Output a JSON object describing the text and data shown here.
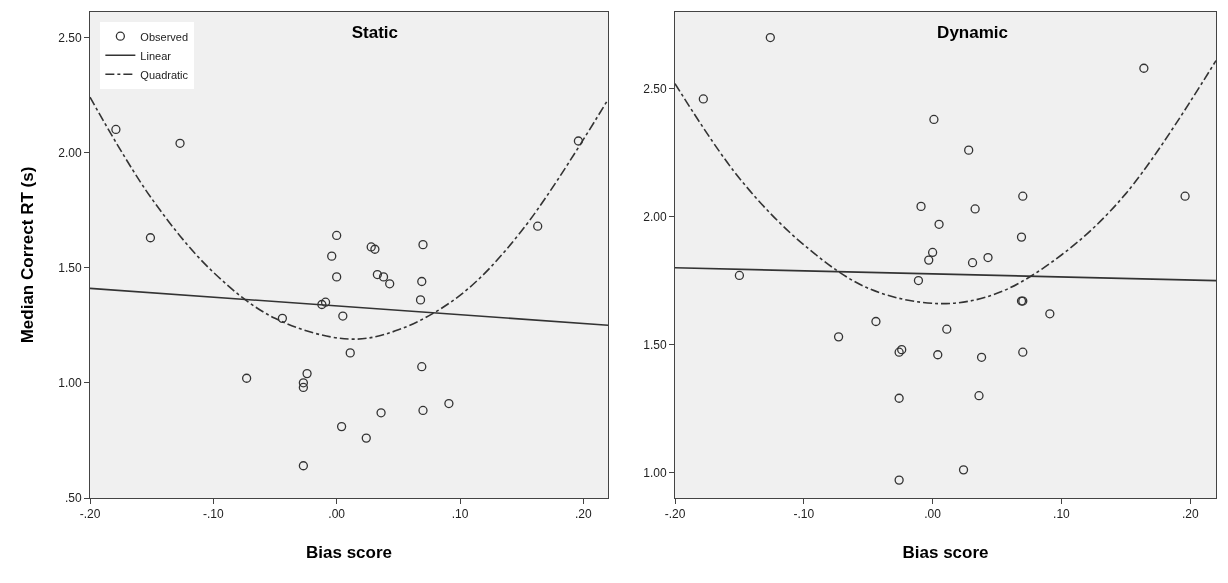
{
  "chart_data": [
    {
      "type": "scatter",
      "title": "Static",
      "xlabel": "Bias score",
      "ylabel": "Median Correct RT (s)",
      "legend": "top left",
      "grid": false,
      "xlim": [
        -0.2,
        0.22
      ],
      "xticks": [
        {
          "value": -0.2,
          "label": "-.20"
        },
        {
          "value": -0.1,
          "label": "-.10"
        },
        {
          "value": 0,
          "label": ".00"
        },
        {
          "value": 0.1,
          "label": ".10"
        },
        {
          "value": 0.2,
          "label": ".20"
        }
      ],
      "ylim": [
        0.5,
        2.61
      ],
      "yticks": [
        {
          "value": 0.5,
          "label": ".50"
        },
        {
          "value": 1,
          "label": "1.00"
        },
        {
          "value": 1.5,
          "label": "1.50"
        },
        {
          "value": 2,
          "label": "2.00"
        },
        {
          "value": 2.5,
          "label": "2.50"
        }
      ],
      "series": [
        {
          "name": "Observed",
          "type": "scatter",
          "marker": "circle",
          "color": "#333333",
          "x": [
            -0.179,
            -0.127,
            -0.151,
            0.0,
            -0.004,
            0.028,
            0.031,
            0.07,
            0.0,
            0.033,
            0.038,
            0.043,
            0.069,
            0.163,
            0.196,
            0.068,
            -0.012,
            -0.009,
            -0.044,
            0.005,
            0.011,
            -0.073,
            -0.024,
            -0.027,
            -0.027,
            0.069,
            0.07,
            0.091,
            0.036,
            0.004,
            0.024,
            -0.027
          ],
          "values": [
            2.1,
            2.04,
            1.63,
            1.64,
            1.55,
            1.59,
            1.58,
            1.6,
            1.46,
            1.47,
            1.46,
            1.43,
            1.44,
            1.68,
            2.05,
            1.36,
            1.34,
            1.35,
            1.28,
            1.29,
            1.13,
            1.02,
            1.04,
            1.0,
            0.98,
            1.07,
            0.88,
            0.91,
            0.87,
            0.81,
            0.76,
            0.64
          ]
        },
        {
          "name": "Linear",
          "type": "line",
          "line_style": "solid",
          "color": "#333333",
          "x": [
            -0.2,
            0.22
          ],
          "values": [
            1.41,
            1.25
          ]
        },
        {
          "name": "Quadratic",
          "type": "line",
          "line_style": "dashdot",
          "color": "#333333",
          "x": [
            -0.2,
            -0.15,
            -0.1,
            -0.05,
            0.01,
            0.05,
            0.1,
            0.15,
            0.22
          ],
          "values": [
            2.24,
            1.8,
            1.48,
            1.28,
            1.19,
            1.23,
            1.38,
            1.66,
            2.23
          ]
        }
      ]
    },
    {
      "type": "scatter",
      "title": "Dynamic",
      "xlabel": "Bias score",
      "grid": false,
      "xlim": [
        -0.2,
        0.22
      ],
      "xticks": [
        {
          "value": -0.2,
          "label": "-.20"
        },
        {
          "value": -0.1,
          "label": "-.10"
        },
        {
          "value": 0,
          "label": ".00"
        },
        {
          "value": 0.1,
          "label": ".10"
        },
        {
          "value": 0.2,
          "label": ".20"
        }
      ],
      "ylim": [
        0.9,
        2.8
      ],
      "yticks": [
        {
          "value": 1,
          "label": "1.00"
        },
        {
          "value": 1.5,
          "label": "1.50"
        },
        {
          "value": 2,
          "label": "2.00"
        },
        {
          "value": 2.5,
          "label": "2.50"
        }
      ],
      "series": [
        {
          "type": "scatter",
          "marker": "circle",
          "color": "#333333",
          "x": [
            -0.126,
            -0.178,
            0.001,
            0.028,
            0.164,
            0.196,
            0.07,
            -0.009,
            0.033,
            0.005,
            0.069,
            0.0,
            -0.003,
            0.031,
            0.043,
            -0.15,
            -0.011,
            0.069,
            0.07,
            0.091,
            -0.044,
            0.011,
            -0.073,
            -0.026,
            -0.024,
            0.004,
            0.038,
            0.07,
            -0.026,
            0.036,
            0.024,
            -0.026
          ],
          "values": [
            2.7,
            2.46,
            2.38,
            2.26,
            2.58,
            2.08,
            2.08,
            2.04,
            2.03,
            1.97,
            1.92,
            1.86,
            1.83,
            1.82,
            1.84,
            1.77,
            1.75,
            1.67,
            1.67,
            1.62,
            1.59,
            1.56,
            1.53,
            1.47,
            1.48,
            1.46,
            1.45,
            1.47,
            1.29,
            1.3,
            1.01,
            0.97
          ]
        },
        {
          "type": "line",
          "line_style": "solid",
          "color": "#333333",
          "x": [
            -0.2,
            0.22
          ],
          "values": [
            1.8,
            1.75
          ]
        },
        {
          "type": "line",
          "line_style": "dashdot",
          "color": "#333333",
          "x": [
            -0.2,
            -0.15,
            -0.1,
            -0.05,
            0.005,
            0.05,
            0.1,
            0.15,
            0.22
          ],
          "values": [
            2.52,
            2.15,
            1.89,
            1.72,
            1.66,
            1.7,
            1.85,
            2.09,
            2.61
          ]
        }
      ]
    }
  ]
}
